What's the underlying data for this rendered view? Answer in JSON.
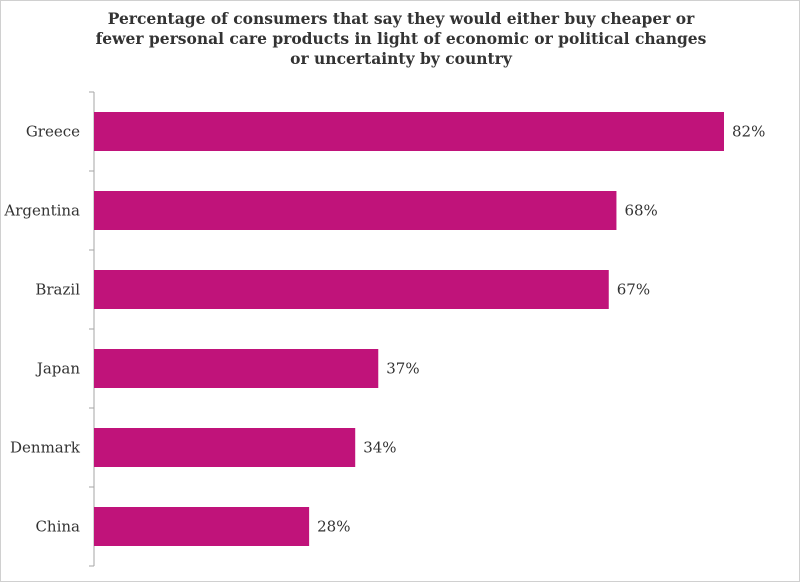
{
  "chart_data": {
    "type": "bar",
    "orientation": "horizontal",
    "title_lines": [
      "Percentage of consumers that say they would either buy cheaper or",
      "fewer personal care products in light of economic or political changes",
      "or uncertainty by country"
    ],
    "categories": [
      "Greece",
      "Argentina",
      "Brazil",
      "Japan",
      "Denmark",
      "China"
    ],
    "values": [
      82,
      68,
      67,
      37,
      34,
      28
    ],
    "data_labels": [
      "82%",
      "68%",
      "67%",
      "37%",
      "34%",
      "28%"
    ],
    "xlabel": "",
    "ylabel": "",
    "xlim": [
      0,
      100
    ],
    "grid": false,
    "legend": "none",
    "bar_color": "#c0137a",
    "axis_color": "#a6a6a6",
    "text_color": "#333333"
  }
}
